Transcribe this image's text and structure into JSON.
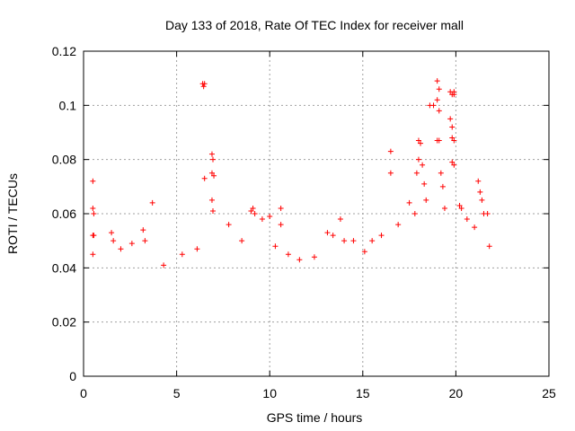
{
  "chart_data": {
    "type": "scatter",
    "title": "Day 133 of 2018, Rate Of TEC Index for receiver mall",
    "xlabel": "GPS time / hours",
    "ylabel": "ROTI / TECUs",
    "xlim": [
      0,
      25
    ],
    "ylim": [
      0,
      0.12
    ],
    "x_ticks": [
      0,
      5,
      10,
      15,
      20,
      25
    ],
    "x_tick_labels": [
      "0",
      "5",
      "10",
      "15",
      "20",
      "25"
    ],
    "y_ticks": [
      0,
      0.02,
      0.04,
      0.06,
      0.08,
      0.1,
      0.12
    ],
    "y_tick_labels": [
      "0",
      "0.02",
      "0.04",
      "0.06",
      "0.08",
      "0.1",
      "0.12"
    ],
    "grid": true,
    "marker": "+",
    "series": [
      {
        "name": "ROTI",
        "color": "#ff0000",
        "points": [
          [
            0.5,
            0.072
          ],
          [
            0.5,
            0.062
          ],
          [
            0.55,
            0.06
          ],
          [
            0.5,
            0.052
          ],
          [
            0.55,
            0.052
          ],
          [
            0.5,
            0.045
          ],
          [
            1.5,
            0.053
          ],
          [
            1.6,
            0.05
          ],
          [
            2.0,
            0.047
          ],
          [
            2.6,
            0.049
          ],
          [
            3.2,
            0.054
          ],
          [
            3.3,
            0.05
          ],
          [
            3.7,
            0.064
          ],
          [
            4.3,
            0.041
          ],
          [
            5.3,
            0.045
          ],
          [
            6.1,
            0.047
          ],
          [
            6.4,
            0.108
          ],
          [
            6.5,
            0.108
          ],
          [
            6.45,
            0.107
          ],
          [
            6.5,
            0.073
          ],
          [
            6.9,
            0.082
          ],
          [
            6.95,
            0.08
          ],
          [
            6.9,
            0.075
          ],
          [
            7.0,
            0.074
          ],
          [
            6.9,
            0.065
          ],
          [
            6.95,
            0.061
          ],
          [
            7.8,
            0.056
          ],
          [
            8.5,
            0.05
          ],
          [
            9.0,
            0.061
          ],
          [
            9.2,
            0.06
          ],
          [
            9.1,
            0.062
          ],
          [
            9.6,
            0.058
          ],
          [
            10.0,
            0.059
          ],
          [
            10.3,
            0.048
          ],
          [
            10.6,
            0.062
          ],
          [
            10.6,
            0.056
          ],
          [
            11.0,
            0.045
          ],
          [
            11.6,
            0.043
          ],
          [
            12.4,
            0.044
          ],
          [
            13.1,
            0.053
          ],
          [
            13.4,
            0.052
          ],
          [
            13.8,
            0.058
          ],
          [
            14.0,
            0.05
          ],
          [
            14.5,
            0.05
          ],
          [
            15.1,
            0.046
          ],
          [
            15.5,
            0.05
          ],
          [
            16.0,
            0.052
          ],
          [
            16.5,
            0.083
          ],
          [
            16.5,
            0.075
          ],
          [
            16.9,
            0.056
          ],
          [
            17.5,
            0.064
          ],
          [
            17.8,
            0.06
          ],
          [
            17.9,
            0.075
          ],
          [
            18.0,
            0.08
          ],
          [
            18.0,
            0.087
          ],
          [
            18.1,
            0.086
          ],
          [
            18.2,
            0.078
          ],
          [
            18.3,
            0.071
          ],
          [
            18.4,
            0.065
          ],
          [
            18.6,
            0.1
          ],
          [
            18.8,
            0.1
          ],
          [
            19.0,
            0.109
          ],
          [
            19.1,
            0.106
          ],
          [
            19.0,
            0.102
          ],
          [
            19.1,
            0.098
          ],
          [
            19.0,
            0.087
          ],
          [
            19.1,
            0.087
          ],
          [
            19.2,
            0.075
          ],
          [
            19.3,
            0.07
          ],
          [
            19.4,
            0.062
          ],
          [
            19.7,
            0.105
          ],
          [
            19.8,
            0.104
          ],
          [
            19.9,
            0.105
          ],
          [
            19.9,
            0.104
          ],
          [
            19.7,
            0.095
          ],
          [
            19.8,
            0.092
          ],
          [
            19.8,
            0.088
          ],
          [
            19.9,
            0.087
          ],
          [
            19.8,
            0.079
          ],
          [
            19.9,
            0.078
          ],
          [
            20.2,
            0.063
          ],
          [
            20.3,
            0.062
          ],
          [
            20.6,
            0.058
          ],
          [
            21.0,
            0.055
          ],
          [
            21.2,
            0.072
          ],
          [
            21.3,
            0.068
          ],
          [
            21.4,
            0.065
          ],
          [
            21.5,
            0.06
          ],
          [
            21.7,
            0.06
          ],
          [
            21.8,
            0.048
          ]
        ]
      }
    ]
  }
}
